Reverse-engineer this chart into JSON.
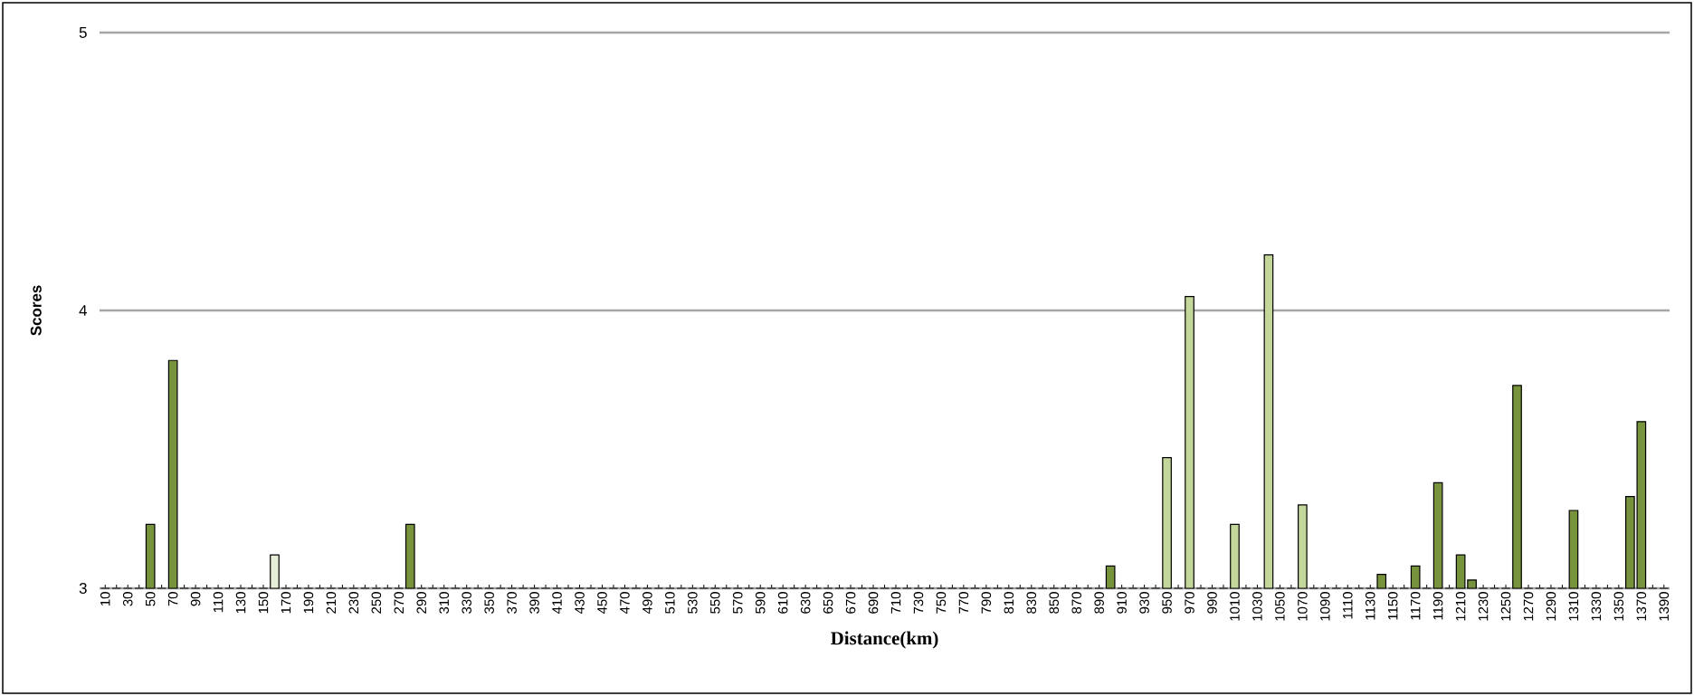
{
  "chart_data": {
    "type": "bar",
    "xlabel": "Distance(km)",
    "ylabel": "Scores",
    "categories": [
      "10",
      null,
      "30",
      null,
      "50",
      null,
      "70",
      null,
      "90",
      null,
      "110",
      null,
      "130",
      null,
      "150",
      null,
      "170",
      null,
      "190",
      null,
      "210",
      null,
      "230",
      null,
      "250",
      null,
      "270",
      null,
      "290",
      null,
      "310",
      null,
      "330",
      null,
      "350",
      null,
      "370",
      null,
      "390",
      null,
      "410",
      null,
      "430",
      null,
      "450",
      null,
      "470",
      null,
      "490",
      null,
      "510",
      null,
      "530",
      null,
      "550",
      null,
      "570",
      null,
      "590",
      null,
      "610",
      null,
      "630",
      null,
      "650",
      null,
      "670",
      null,
      "690",
      null,
      "710",
      null,
      "730",
      null,
      "750",
      null,
      "770",
      null,
      "790",
      null,
      "810",
      null,
      "830",
      null,
      "850",
      null,
      "870",
      null,
      "890",
      null,
      "910",
      null,
      "930",
      null,
      "950",
      null,
      "970",
      null,
      "990",
      null,
      "1010",
      null,
      "1030",
      null,
      "1050",
      null,
      "1070",
      null,
      "1090",
      null,
      "1110",
      null,
      "1130",
      null,
      "1150",
      null,
      "1170",
      null,
      "1190",
      null,
      "1210",
      null,
      "1230",
      null,
      "1250",
      null,
      "1270",
      null,
      "1290",
      null,
      "1310",
      null,
      "1330",
      null,
      "1350",
      null,
      "1370",
      null,
      "1390"
    ],
    "values": [
      3,
      3,
      3,
      3,
      3.23,
      3,
      3.82,
      3,
      3,
      3,
      3,
      3,
      3,
      3,
      3,
      3.12,
      3,
      3,
      3,
      3,
      3,
      3,
      3,
      3,
      3,
      3,
      3,
      3.23,
      3,
      3,
      3,
      3,
      3,
      3,
      3,
      3,
      3,
      3,
      3,
      3,
      3,
      3,
      3,
      3,
      3,
      3,
      3,
      3,
      3,
      3,
      3,
      3,
      3,
      3,
      3,
      3,
      3,
      3,
      3,
      3,
      3,
      3,
      3,
      3,
      3,
      3,
      3,
      3,
      3,
      3,
      3,
      3,
      3,
      3,
      3,
      3,
      3,
      3,
      3,
      3,
      3,
      3,
      3,
      3,
      3,
      3,
      3,
      3,
      3,
      3.08,
      3,
      3,
      3,
      3,
      3.47,
      3,
      4.05,
      3,
      3,
      3,
      3.23,
      3,
      3,
      4.2,
      3,
      3,
      3.3,
      3,
      3,
      3,
      3,
      3,
      3,
      3.05,
      3,
      3,
      3.08,
      3,
      3.38,
      3,
      3.12,
      3.03,
      3,
      3,
      3,
      3.73,
      3,
      3,
      3,
      3,
      3.28,
      3,
      3,
      3,
      3,
      3.33,
      3.6,
      3,
      3
    ],
    "colors": [
      "#77933c",
      "#77933c",
      "#77933c",
      "#77933c",
      "#77933c",
      "#77933c",
      "#77933c",
      "#77933c",
      "#77933c",
      "#77933c",
      "#77933c",
      "#77933c",
      "#77933c",
      "#77933c",
      "#77933c",
      "#e6eed8",
      "#77933c",
      "#77933c",
      "#77933c",
      "#77933c",
      "#77933c",
      "#77933c",
      "#77933c",
      "#77933c",
      "#77933c",
      "#77933c",
      "#77933c",
      "#77933c",
      "#77933c",
      "#77933c",
      "#77933c",
      "#77933c",
      "#77933c",
      "#77933c",
      "#77933c",
      "#77933c",
      "#77933c",
      "#77933c",
      "#77933c",
      "#77933c",
      "#77933c",
      "#77933c",
      "#77933c",
      "#77933c",
      "#77933c",
      "#77933c",
      "#77933c",
      "#77933c",
      "#77933c",
      "#77933c",
      "#77933c",
      "#77933c",
      "#77933c",
      "#77933c",
      "#77933c",
      "#77933c",
      "#77933c",
      "#77933c",
      "#77933c",
      "#77933c",
      "#77933c",
      "#77933c",
      "#77933c",
      "#77933c",
      "#77933c",
      "#77933c",
      "#77933c",
      "#77933c",
      "#77933c",
      "#77933c",
      "#77933c",
      "#77933c",
      "#77933c",
      "#77933c",
      "#77933c",
      "#77933c",
      "#77933c",
      "#77933c",
      "#77933c",
      "#77933c",
      "#77933c",
      "#77933c",
      "#77933c",
      "#77933c",
      "#77933c",
      "#77933c",
      "#77933c",
      "#77933c",
      "#77933c",
      "#77933c",
      "#77933c",
      "#77933c",
      "#77933c",
      "#77933c",
      "#c4d79b",
      "#77933c",
      "#c4d79b",
      "#77933c",
      "#77933c",
      "#77933c",
      "#c4d79b",
      "#77933c",
      "#77933c",
      "#c4d79b",
      "#77933c",
      "#77933c",
      "#c4d79b",
      "#77933c",
      "#77933c",
      "#77933c",
      "#77933c",
      "#77933c",
      "#77933c",
      "#77933c",
      "#77933c",
      "#77933c",
      "#77933c",
      "#77933c",
      "#77933c",
      "#77933c",
      "#77933c",
      "#77933c",
      "#77933c",
      "#77933c",
      "#77933c",
      "#77933c",
      "#77933c",
      "#77933c",
      "#77933c",
      "#77933c",
      "#77933c",
      "#77933c",
      "#77933c",
      "#77933c",
      "#77933c",
      "#77933c",
      "#77933c",
      "#77933c",
      "#77933c"
    ],
    "ylim": [
      3,
      5
    ],
    "yticks": [
      3,
      4,
      5
    ],
    "grid": "y"
  }
}
